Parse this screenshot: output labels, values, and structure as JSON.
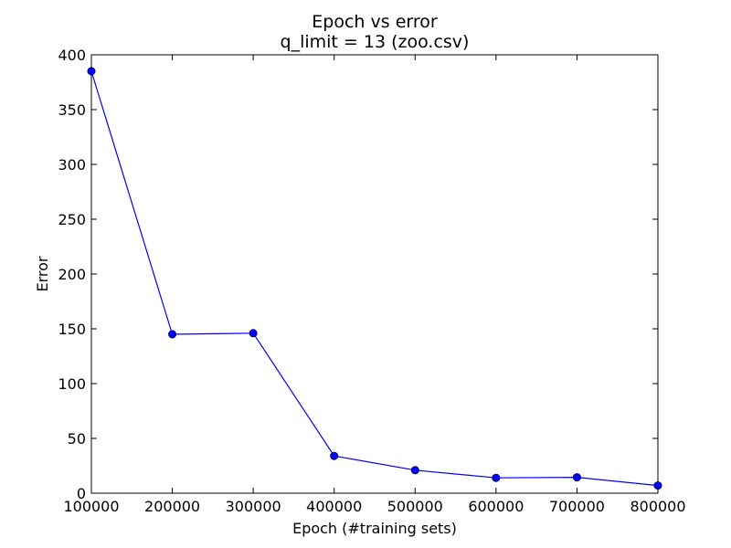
{
  "chart_data": {
    "type": "line",
    "title": "Epoch vs error",
    "subtitle": "q_limit = 13 (zoo.csv)",
    "xlabel": "Epoch (#training sets)",
    "ylabel": "Error",
    "xlim": [
      100000,
      800000
    ],
    "ylim": [
      0,
      400
    ],
    "x_ticks": [
      100000,
      200000,
      300000,
      400000,
      500000,
      600000,
      700000,
      800000
    ],
    "y_ticks": [
      0,
      50,
      100,
      150,
      200,
      250,
      300,
      350,
      400
    ],
    "grid": false,
    "series": [
      {
        "color": "#0000ff",
        "marker": "circle",
        "x": [
          100000,
          200000,
          300000,
          400000,
          500000,
          600000,
          700000,
          800000
        ],
        "y": [
          385,
          145,
          146,
          34,
          21,
          14,
          14.5,
          7
        ]
      }
    ]
  }
}
